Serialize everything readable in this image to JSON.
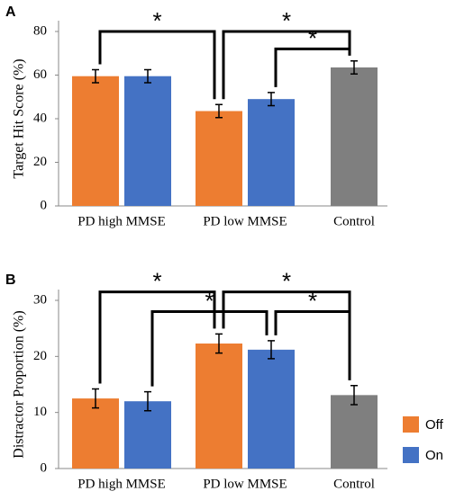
{
  "chart_data": [
    {
      "type": "bar",
      "title": "A",
      "ylabel": "Target Hit Score (%)",
      "categories": [
        "PD high MMSE",
        "PD low MMSE",
        "Control"
      ],
      "series": [
        {
          "name": "Off",
          "color": "#ed7d31",
          "values": [
            59.5,
            43.5,
            null
          ],
          "errors": [
            3,
            3,
            null
          ]
        },
        {
          "name": "On",
          "color": "#4472c4",
          "values": [
            59.5,
            49,
            null
          ],
          "errors": [
            3,
            3,
            null
          ]
        },
        {
          "color": "#7f7f7f",
          "values": [
            null,
            null,
            63.5
          ],
          "errors": [
            null,
            null,
            3
          ]
        }
      ],
      "ylim": [
        0,
        80
      ],
      "yticks": [
        0,
        20,
        40,
        60,
        80
      ],
      "annotations": [
        {
          "label": "*",
          "from": [
            0,
            0
          ],
          "to": [
            1,
            0
          ],
          "height": 80
        },
        {
          "label": "*",
          "from": [
            1,
            0
          ],
          "to": [
            2,
            2
          ],
          "height": 80
        },
        {
          "label": "*",
          "from": [
            1,
            1
          ],
          "to": [
            2,
            2
          ],
          "height": 72
        }
      ]
    },
    {
      "type": "bar",
      "title": "B",
      "ylabel": "Distractor Proportion (%)",
      "categories": [
        "PD high MMSE",
        "PD low MMSE",
        "Control"
      ],
      "series": [
        {
          "name": "Off",
          "color": "#ed7d31",
          "values": [
            12.5,
            22.3,
            null
          ],
          "errors": [
            1.7,
            1.7,
            null
          ]
        },
        {
          "name": "On",
          "color": "#4472c4",
          "values": [
            12,
            21.2,
            null
          ],
          "errors": [
            1.7,
            1.6,
            null
          ]
        },
        {
          "color": "#7f7f7f",
          "values": [
            null,
            null,
            13.1
          ],
          "errors": [
            null,
            null,
            1.7
          ]
        }
      ],
      "ylim": [
        0,
        30
      ],
      "yticks": [
        0,
        10,
        20,
        30
      ],
      "legend": "right",
      "annotations": [
        {
          "label": "*",
          "from": [
            0,
            0
          ],
          "to": [
            1,
            0
          ],
          "height": 31.5
        },
        {
          "label": "*",
          "from": [
            0,
            1
          ],
          "to": [
            1,
            1
          ],
          "height": 28
        },
        {
          "label": "*",
          "from": [
            1,
            0
          ],
          "to": [
            2,
            2
          ],
          "height": 31.5
        },
        {
          "label": "*",
          "from": [
            1,
            1
          ],
          "to": [
            2,
            2
          ],
          "height": 28
        }
      ]
    }
  ]
}
